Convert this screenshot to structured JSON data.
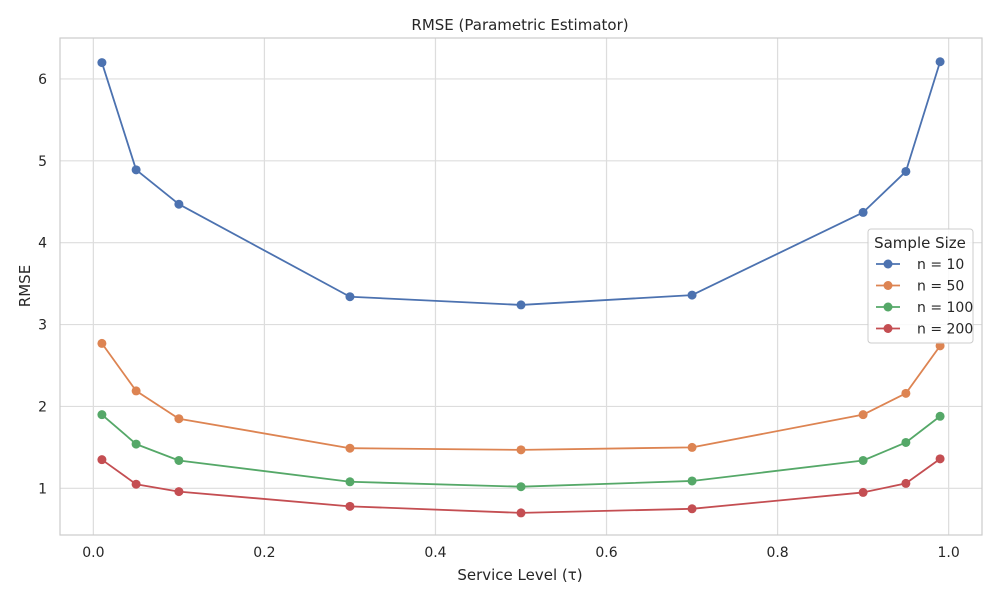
{
  "chart_data": {
    "type": "line",
    "title": "RMSE (Parametric Estimator)",
    "xlabel": "Service Level (τ)",
    "ylabel": "RMSE",
    "xlim": [
      -0.039,
      1.039
    ],
    "ylim": [
      0.43,
      6.5
    ],
    "x_ticks": [
      0.0,
      0.2,
      0.4,
      0.6,
      0.8,
      1.0
    ],
    "x_tick_labels": [
      "0.0",
      "0.2",
      "0.4",
      "0.6",
      "0.8",
      "1.0"
    ],
    "y_ticks": [
      1,
      2,
      3,
      4,
      5,
      6
    ],
    "y_tick_labels": [
      "1",
      "2",
      "3",
      "4",
      "5",
      "6"
    ],
    "grid": true,
    "legend": {
      "title": "Sample Size",
      "position": "center-right"
    },
    "x": [
      0.01,
      0.05,
      0.1,
      0.3,
      0.5,
      0.7,
      0.9,
      0.95,
      0.99
    ],
    "series": [
      {
        "name": "n = 10",
        "color": "#4c72b0",
        "values": [
          6.2,
          4.89,
          4.47,
          3.34,
          3.24,
          3.36,
          4.37,
          4.87,
          6.21
        ]
      },
      {
        "name": "n = 50",
        "color": "#dd8452",
        "values": [
          2.77,
          2.19,
          1.85,
          1.49,
          1.47,
          1.5,
          1.9,
          2.16,
          2.74
        ]
      },
      {
        "name": "n = 100",
        "color": "#55a868",
        "values": [
          1.9,
          1.54,
          1.34,
          1.08,
          1.02,
          1.09,
          1.34,
          1.56,
          1.88
        ]
      },
      {
        "name": "n = 200",
        "color": "#c44e52",
        "values": [
          1.35,
          1.05,
          0.96,
          0.78,
          0.7,
          0.75,
          0.95,
          1.06,
          1.36
        ]
      }
    ]
  }
}
